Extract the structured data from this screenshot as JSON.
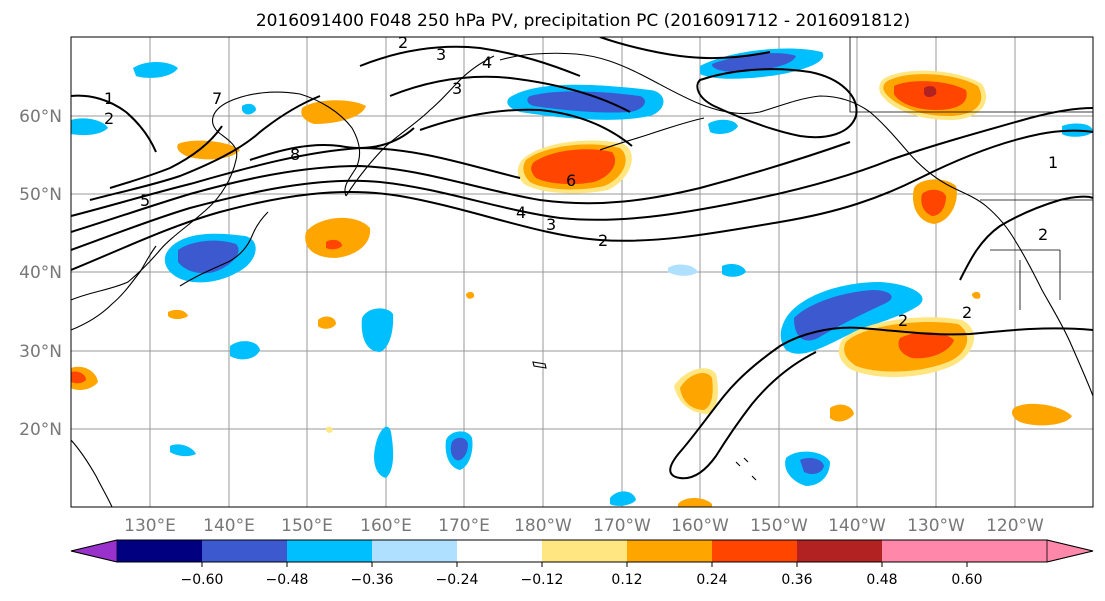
{
  "title": "2016091400 F048 250 hPa PV, precipitation PC (2016091712 - 2016091812)",
  "latitude_labels": [
    "60°N",
    "50°N",
    "40°N",
    "30°N",
    "20°N"
  ],
  "longitude_labels": [
    "130°E",
    "140°E",
    "150°E",
    "160°E",
    "170°E",
    "180°W",
    "170°W",
    "160°W",
    "150°W",
    "140°W",
    "130°W",
    "120°W"
  ],
  "colorbar": {
    "ticks": [
      "−0.60",
      "−0.48",
      "−0.36",
      "−0.24",
      "−0.12",
      "0.12",
      "0.24",
      "0.36",
      "0.48",
      "0.60"
    ],
    "colors": [
      "#9932CC",
      "#000080",
      "#3C59D0",
      "#00BFFF",
      "#B0E0FF",
      "#FFFFFF",
      "#FFE680",
      "#FFA500",
      "#FF4500",
      "#B22222",
      "#FF88AA"
    ]
  },
  "colors": {
    "neg_strong": "#3C59D0",
    "neg_mid": "#00BFFF",
    "neg_light": "#B0E0FF",
    "pos_light": "#FFE680",
    "pos_mid": "#FFA500",
    "pos_strong": "#FF4500",
    "pos_max": "#B22222",
    "gridline": "#999999",
    "axis_label": "#777777"
  },
  "contour_labels": [
    "8",
    "7",
    "6",
    "5",
    "4",
    "3",
    "2",
    "1",
    "2",
    "2",
    "2",
    "1",
    "2",
    "3",
    "4",
    "3",
    "2"
  ]
}
